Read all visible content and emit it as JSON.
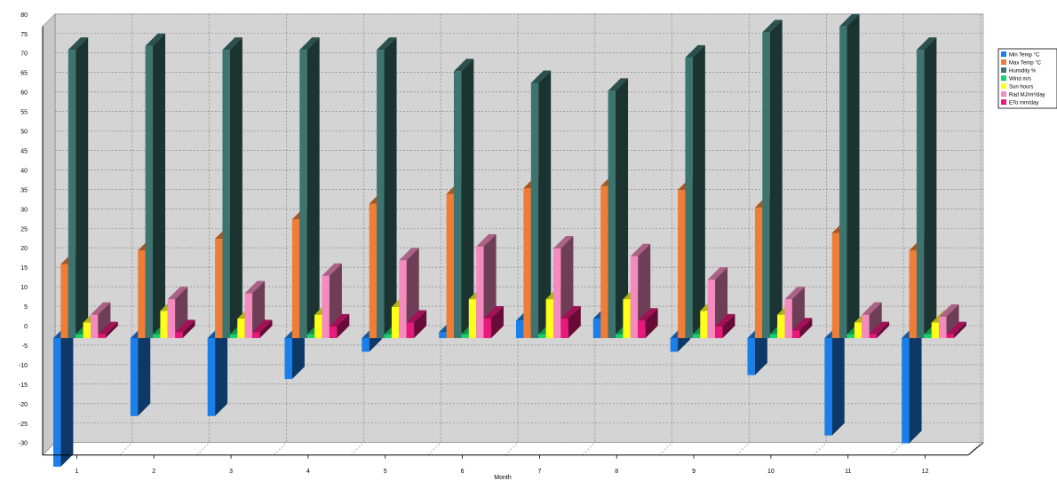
{
  "chart_data": {
    "type": "bar",
    "title": "",
    "xlabel": "Month",
    "ylabel": "",
    "ylim": [
      -30,
      80
    ],
    "yticks": [
      80,
      75,
      70,
      65,
      60,
      55,
      50,
      45,
      40,
      35,
      30,
      25,
      20,
      15,
      10,
      5,
      0,
      -5,
      -10,
      -15,
      -20,
      -25,
      -30
    ],
    "categories": [
      "1",
      "2",
      "3",
      "4",
      "5",
      "6",
      "7",
      "8",
      "9",
      "10",
      "11",
      "12"
    ],
    "grid": true,
    "legend_position": "right",
    "series": [
      {
        "name": "Min Temp  °C",
        "color": "#1a7fe8",
        "values": [
          -33,
          -20,
          -20,
          -10.5,
          -3.5,
          1.5,
          4.5,
          5,
          -3.5,
          -9.5,
          -25,
          -27
        ]
      },
      {
        "name": "Max Temp  °C",
        "color": "#f07d36",
        "values": [
          19,
          22.5,
          25.5,
          30.5,
          34.5,
          37,
          38.5,
          39,
          38,
          33.5,
          27,
          22.5
        ]
      },
      {
        "name": "Humidity  %",
        "color": "#3d7470",
        "values": [
          74,
          75,
          74,
          74,
          74,
          68.5,
          65.5,
          63.5,
          72,
          78.5,
          80,
          74
        ]
      },
      {
        "name": "Wind  m/s",
        "color": "#19d26b",
        "values": [
          1,
          1,
          1,
          1,
          1,
          1,
          1,
          1,
          1,
          1,
          1,
          1
        ]
      },
      {
        "name": "Sun  hours",
        "color": "#ffff1a",
        "values": [
          4,
          7,
          5,
          6,
          8,
          10,
          10,
          10,
          7,
          6,
          4,
          4
        ]
      },
      {
        "name": "Rad  MJ/m²/day",
        "color": "#f58ac0",
        "values": [
          6,
          10,
          11.5,
          16,
          20,
          23.5,
          23,
          21,
          15,
          10,
          6,
          5.5
        ]
      },
      {
        "name": "ETo  mm/day",
        "color": "#e8187d",
        "values": [
          1,
          1.5,
          1.5,
          3,
          4,
          5,
          5,
          4.5,
          3,
          2,
          1,
          1
        ]
      }
    ]
  }
}
